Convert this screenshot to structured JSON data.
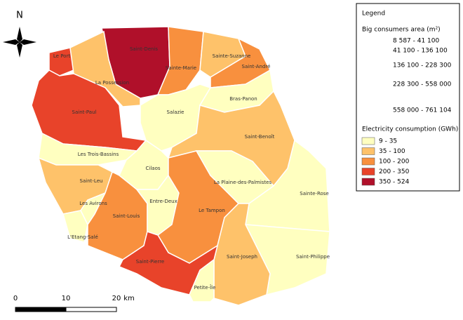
{
  "north": "N",
  "communes": [
    {
      "name": "Saint-Denis",
      "color": "#b0102a"
    },
    {
      "name": "Le Port",
      "color": "#e8432a"
    },
    {
      "name": "La Possession",
      "color": "#fec26a"
    },
    {
      "name": "Saint-Paul",
      "color": "#e8432a"
    },
    {
      "name": "Sainte-Marie",
      "color": "#f8903e"
    },
    {
      "name": "Sainte-Suzanne",
      "color": "#fec26a"
    },
    {
      "name": "Saint-André",
      "color": "#f8903e"
    },
    {
      "name": "Salazie",
      "color": "#ffffc0"
    },
    {
      "name": "Bras-Panon",
      "color": "#ffffc0"
    },
    {
      "name": "Saint-Benoît",
      "color": "#fec26a"
    },
    {
      "name": "Les Trois-Bassins",
      "color": "#ffffc0"
    },
    {
      "name": "Cilaos",
      "color": "#ffffc0"
    },
    {
      "name": "Saint-Leu",
      "color": "#fec26a"
    },
    {
      "name": "Les Avirons",
      "color": "#ffffc0"
    },
    {
      "name": "L'Etang-Salé",
      "color": "#ffffc0"
    },
    {
      "name": "Saint-Louis",
      "color": "#f8903e"
    },
    {
      "name": "Entre-Deux",
      "color": "#ffffc0"
    },
    {
      "name": "Le Tampon",
      "color": "#f8903e"
    },
    {
      "name": "La Plaine-des-Palmistes",
      "color": "#ffffc0"
    },
    {
      "name": "Sainte-Rose",
      "color": "#ffffc0"
    },
    {
      "name": "Saint-Philippe",
      "color": "#ffffc0"
    },
    {
      "name": "Saint-Joseph",
      "color": "#fec26a"
    },
    {
      "name": "Saint-Pierre",
      "color": "#e8432a"
    },
    {
      "name": "Petite-Île",
      "color": "#ffffc0"
    }
  ],
  "legend": {
    "title": "Legend",
    "size_title": "Big consumers area (m²)",
    "size_classes": [
      "8 587 - 41 100",
      "41 100 - 136 100",
      "136 100 - 228 300",
      "228 300 - 558 000",
      "558 000 - 761 104"
    ],
    "color_title": "Electricity consumption (GWh)",
    "color_classes": [
      {
        "label": "9 - 35",
        "color": "#ffffc0"
      },
      {
        "label": "35 - 100",
        "color": "#fec26a"
      },
      {
        "label": "100 - 200",
        "color": "#f8903e"
      },
      {
        "label": "200 - 350",
        "color": "#e8432a"
      },
      {
        "label": "350 - 524",
        "color": "#b0102a"
      }
    ]
  },
  "scale_bar": {
    "labels": [
      "0",
      "10",
      "20"
    ],
    "unit": "km"
  }
}
